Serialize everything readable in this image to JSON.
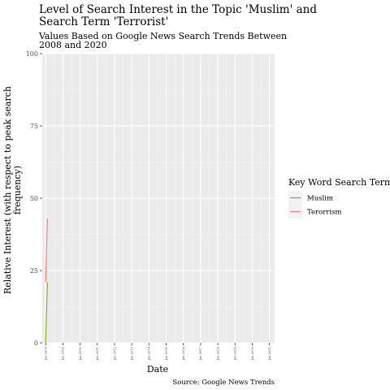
{
  "chart_data": {
    "type": "line",
    "title_lines": [
      "Level of Search Interest in the Topic 'Muslim' and",
      "Search Term 'Terrorist'"
    ],
    "subtitle_lines": [
      "Values Based on Google News Search Trends Between",
      "2008 and 2020"
    ],
    "xlabel": "Date",
    "ylabel_lines": [
      "Relative Interest (with respect to peak search",
      "frequency)"
    ],
    "caption": "Source: Google News Trends",
    "ylim": [
      0,
      100
    ],
    "yticks": [
      0,
      25,
      50,
      75,
      100
    ],
    "xlim": [
      2007.8,
      2021.3
    ],
    "xticks": [
      2008,
      2009,
      2010,
      2011,
      2012,
      2013,
      2014,
      2015,
      2016,
      2017,
      2018,
      2019,
      2020,
      2021
    ],
    "xtick_labels": [
      "Jan 2008",
      "Jan 2009",
      "Jan 2010",
      "Jan 2011",
      "Jan 2012",
      "Jan 2013",
      "Jan 2014",
      "Jan 2015",
      "Jan 2016",
      "Jan 2017",
      "Jan 2018",
      "Jan 2019",
      "Jan 2020",
      "Jan 2021"
    ],
    "grid": true,
    "legend": {
      "title": "Key Word Search Term",
      "position": "right"
    },
    "series": [
      {
        "name": "Muslim",
        "color": "#7cae00",
        "x": [
          2008.0,
          2008.1
        ],
        "y": [
          0,
          21
        ]
      },
      {
        "name": "Terorrism",
        "color": "#f8766d",
        "x": [
          2008.0,
          2008.1
        ],
        "y": [
          21,
          43
        ]
      }
    ]
  }
}
